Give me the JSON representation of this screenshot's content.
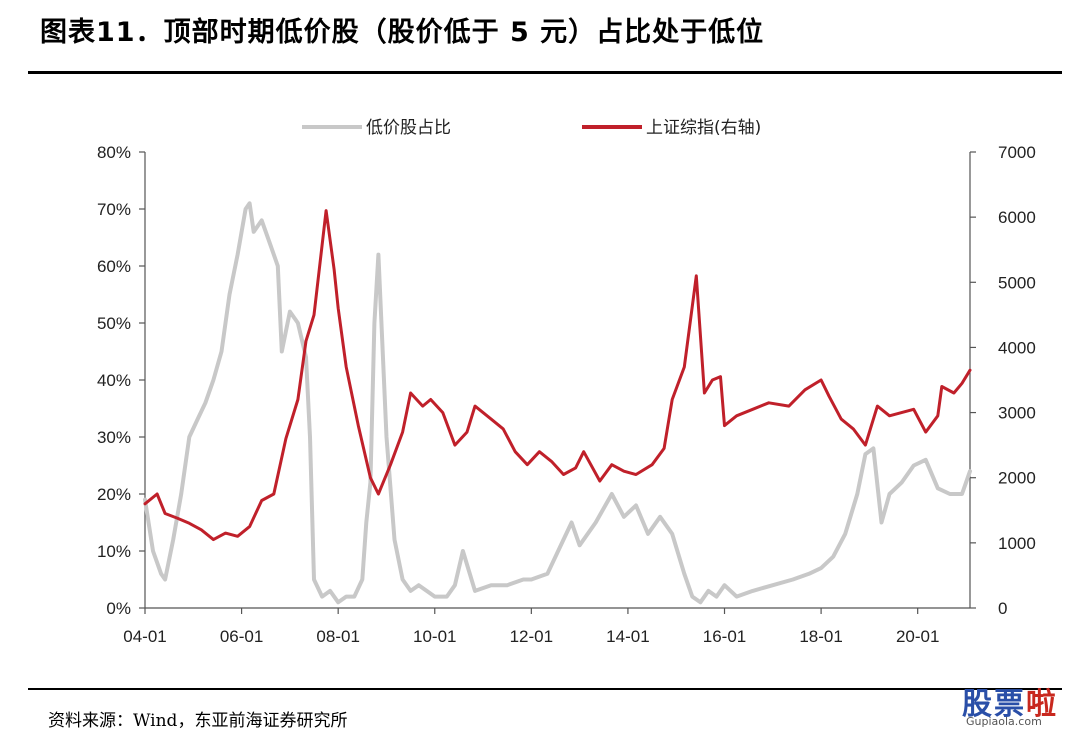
{
  "figure": {
    "title": "图表11．顶部时期低价股（股价低于 5 元）占比处于低位",
    "source": "资料来源：Wind，东亚前海证券研究所",
    "watermark": {
      "main": "股票",
      "accent": "啦",
      "sub": "Gupiaola.com"
    }
  },
  "chart_data": {
    "type": "line",
    "title": "",
    "x_tick_labels": [
      "04-01",
      "06-01",
      "08-01",
      "10-01",
      "12-01",
      "14-01",
      "16-01",
      "18-01",
      "20-01"
    ],
    "x_range": [
      "2004-01",
      "2021-02"
    ],
    "y_left": {
      "label": "",
      "range": [
        0,
        0.8
      ],
      "tick_labels": [
        "0%",
        "10%",
        "20%",
        "30%",
        "40%",
        "50%",
        "60%",
        "70%",
        "80%"
      ]
    },
    "y_right": {
      "label": "",
      "range": [
        0,
        7000
      ],
      "tick_labels": [
        "0",
        "1000",
        "2000",
        "3000",
        "4000",
        "5000",
        "6000",
        "7000"
      ]
    },
    "legend": {
      "placement": "top",
      "entries": [
        "低价股占比",
        "上证综指(右轴)"
      ]
    },
    "grid": false,
    "series": [
      {
        "name": "低价股占比",
        "axis": "left",
        "color": "#c8c8c8",
        "points": [
          [
            "2004-01",
            0.19
          ],
          [
            "2004-03",
            0.1
          ],
          [
            "2004-05",
            0.06
          ],
          [
            "2004-06",
            0.05
          ],
          [
            "2004-08",
            0.12
          ],
          [
            "2004-10",
            0.2
          ],
          [
            "2004-12",
            0.3
          ],
          [
            "2005-02",
            0.33
          ],
          [
            "2005-04",
            0.36
          ],
          [
            "2005-06",
            0.4
          ],
          [
            "2005-08",
            0.45
          ],
          [
            "2005-10",
            0.55
          ],
          [
            "2005-12",
            0.62
          ],
          [
            "2006-02",
            0.7
          ],
          [
            "2006-03",
            0.71
          ],
          [
            "2006-04",
            0.66
          ],
          [
            "2006-06",
            0.68
          ],
          [
            "2006-08",
            0.64
          ],
          [
            "2006-10",
            0.6
          ],
          [
            "2006-11",
            0.45
          ],
          [
            "2007-01",
            0.52
          ],
          [
            "2007-03",
            0.5
          ],
          [
            "2007-05",
            0.44
          ],
          [
            "2007-06",
            0.3
          ],
          [
            "2007-07",
            0.05
          ],
          [
            "2007-09",
            0.02
          ],
          [
            "2007-11",
            0.03
          ],
          [
            "2008-01",
            0.01
          ],
          [
            "2008-03",
            0.02
          ],
          [
            "2008-05",
            0.02
          ],
          [
            "2008-07",
            0.05
          ],
          [
            "2008-08",
            0.15
          ],
          [
            "2008-09",
            0.22
          ],
          [
            "2008-10",
            0.5
          ],
          [
            "2008-11",
            0.62
          ],
          [
            "2009-01",
            0.3
          ],
          [
            "2009-03",
            0.12
          ],
          [
            "2009-05",
            0.05
          ],
          [
            "2009-07",
            0.03
          ],
          [
            "2009-09",
            0.04
          ],
          [
            "2009-11",
            0.03
          ],
          [
            "2010-01",
            0.02
          ],
          [
            "2010-04",
            0.02
          ],
          [
            "2010-06",
            0.04
          ],
          [
            "2010-08",
            0.1
          ],
          [
            "2010-11",
            0.03
          ],
          [
            "2011-03",
            0.04
          ],
          [
            "2011-07",
            0.04
          ],
          [
            "2011-11",
            0.05
          ],
          [
            "2012-01",
            0.05
          ],
          [
            "2012-05",
            0.06
          ],
          [
            "2012-09",
            0.12
          ],
          [
            "2012-11",
            0.15
          ],
          [
            "2013-01",
            0.11
          ],
          [
            "2013-05",
            0.15
          ],
          [
            "2013-09",
            0.2
          ],
          [
            "2013-12",
            0.16
          ],
          [
            "2014-03",
            0.18
          ],
          [
            "2014-06",
            0.13
          ],
          [
            "2014-09",
            0.16
          ],
          [
            "2014-12",
            0.13
          ],
          [
            "2015-03",
            0.06
          ],
          [
            "2015-05",
            0.02
          ],
          [
            "2015-07",
            0.01
          ],
          [
            "2015-09",
            0.03
          ],
          [
            "2015-11",
            0.02
          ],
          [
            "2016-01",
            0.04
          ],
          [
            "2016-04",
            0.02
          ],
          [
            "2016-08",
            0.03
          ],
          [
            "2017-01",
            0.04
          ],
          [
            "2017-06",
            0.05
          ],
          [
            "2017-10",
            0.06
          ],
          [
            "2018-01",
            0.07
          ],
          [
            "2018-04",
            0.09
          ],
          [
            "2018-07",
            0.13
          ],
          [
            "2018-10",
            0.2
          ],
          [
            "2018-12",
            0.27
          ],
          [
            "2019-02",
            0.28
          ],
          [
            "2019-04",
            0.15
          ],
          [
            "2019-06",
            0.2
          ],
          [
            "2019-09",
            0.22
          ],
          [
            "2019-12",
            0.25
          ],
          [
            "2020-03",
            0.26
          ],
          [
            "2020-06",
            0.21
          ],
          [
            "2020-09",
            0.2
          ],
          [
            "2020-12",
            0.2
          ],
          [
            "2021-02",
            0.24
          ]
        ]
      },
      {
        "name": "上证综指(右轴)",
        "axis": "right",
        "color": "#c0202a",
        "points": [
          [
            "2004-01",
            1600
          ],
          [
            "2004-04",
            1750
          ],
          [
            "2004-06",
            1450
          ],
          [
            "2004-09",
            1380
          ],
          [
            "2004-12",
            1300
          ],
          [
            "2005-03",
            1200
          ],
          [
            "2005-06",
            1050
          ],
          [
            "2005-09",
            1150
          ],
          [
            "2005-12",
            1100
          ],
          [
            "2006-03",
            1250
          ],
          [
            "2006-06",
            1650
          ],
          [
            "2006-09",
            1750
          ],
          [
            "2006-12",
            2600
          ],
          [
            "2007-03",
            3200
          ],
          [
            "2007-05",
            4100
          ],
          [
            "2007-07",
            4500
          ],
          [
            "2007-10",
            6100
          ],
          [
            "2007-12",
            5200
          ],
          [
            "2008-01",
            4600
          ],
          [
            "2008-03",
            3700
          ],
          [
            "2008-06",
            2800
          ],
          [
            "2008-09",
            2000
          ],
          [
            "2008-11",
            1750
          ],
          [
            "2009-02",
            2200
          ],
          [
            "2009-05",
            2700
          ],
          [
            "2009-07",
            3300
          ],
          [
            "2009-10",
            3100
          ],
          [
            "2009-12",
            3200
          ],
          [
            "2010-03",
            3000
          ],
          [
            "2010-06",
            2500
          ],
          [
            "2010-09",
            2700
          ],
          [
            "2010-11",
            3100
          ],
          [
            "2011-03",
            2900
          ],
          [
            "2011-06",
            2750
          ],
          [
            "2011-09",
            2400
          ],
          [
            "2011-12",
            2200
          ],
          [
            "2012-03",
            2400
          ],
          [
            "2012-06",
            2250
          ],
          [
            "2012-09",
            2050
          ],
          [
            "2012-12",
            2150
          ],
          [
            "2013-02",
            2400
          ],
          [
            "2013-06",
            1950
          ],
          [
            "2013-09",
            2200
          ],
          [
            "2013-12",
            2100
          ],
          [
            "2014-03",
            2050
          ],
          [
            "2014-07",
            2200
          ],
          [
            "2014-10",
            2450
          ],
          [
            "2014-12",
            3200
          ],
          [
            "2015-03",
            3700
          ],
          [
            "2015-06",
            5100
          ],
          [
            "2015-08",
            3300
          ],
          [
            "2015-10",
            3500
          ],
          [
            "2015-12",
            3550
          ],
          [
            "2016-01",
            2800
          ],
          [
            "2016-04",
            2950
          ],
          [
            "2016-08",
            3050
          ],
          [
            "2016-12",
            3150
          ],
          [
            "2017-05",
            3100
          ],
          [
            "2017-09",
            3350
          ],
          [
            "2018-01",
            3500
          ],
          [
            "2018-03",
            3250
          ],
          [
            "2018-06",
            2900
          ],
          [
            "2018-09",
            2750
          ],
          [
            "2018-12",
            2500
          ],
          [
            "2019-03",
            3100
          ],
          [
            "2019-06",
            2950
          ],
          [
            "2019-09",
            3000
          ],
          [
            "2019-12",
            3050
          ],
          [
            "2020-03",
            2700
          ],
          [
            "2020-06",
            2950
          ],
          [
            "2020-07",
            3400
          ],
          [
            "2020-10",
            3300
          ],
          [
            "2020-12",
            3450
          ],
          [
            "2021-02",
            3650
          ]
        ]
      }
    ]
  }
}
